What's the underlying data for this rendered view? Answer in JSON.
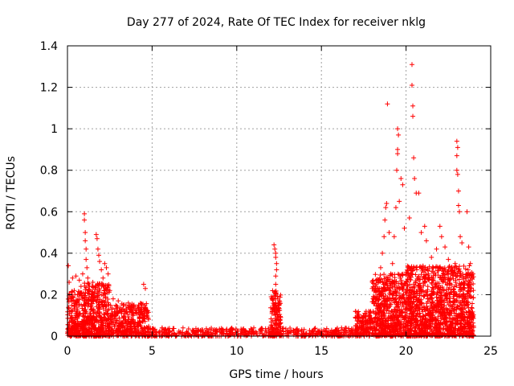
{
  "chart_data": {
    "type": "scatter",
    "title": "Day 277 of 2024, Rate Of TEC Index for receiver nklg",
    "xlabel": "GPS time / hours",
    "ylabel": "ROTI / TECUs",
    "xlim": [
      0,
      25
    ],
    "ylim": [
      0,
      1.4
    ],
    "x_ticks": [
      0,
      5,
      10,
      15,
      20,
      25
    ],
    "x_tick_labels": [
      "0",
      "5",
      "10",
      "15",
      "20",
      "25"
    ],
    "y_ticks": [
      0,
      0.2,
      0.4,
      0.6,
      0.8,
      1,
      1.2,
      1.4
    ],
    "y_tick_labels": [
      "0",
      "0.2",
      "0.4",
      "0.6",
      "0.8",
      "1",
      "1.2",
      "1.4"
    ],
    "grid": true,
    "marker": "+",
    "color": "#ff0000",
    "series": [
      {
        "name": "ROTI",
        "points": [
          [
            0.05,
            0.34
          ],
          [
            0.1,
            0.26
          ],
          [
            0.2,
            0.18
          ],
          [
            0.3,
            0.28
          ],
          [
            0.4,
            0.22
          ],
          [
            0.5,
            0.29
          ],
          [
            0.6,
            0.2
          ],
          [
            0.7,
            0.27
          ],
          [
            0.8,
            0.24
          ],
          [
            0.9,
            0.3
          ],
          [
            1.0,
            0.59
          ],
          [
            1.0,
            0.56
          ],
          [
            1.05,
            0.5
          ],
          [
            1.05,
            0.46
          ],
          [
            1.1,
            0.42
          ],
          [
            1.1,
            0.37
          ],
          [
            1.15,
            0.33
          ],
          [
            1.2,
            0.28
          ],
          [
            1.3,
            0.24
          ],
          [
            1.5,
            0.26
          ],
          [
            1.7,
            0.49
          ],
          [
            1.75,
            0.47
          ],
          [
            1.8,
            0.42
          ],
          [
            1.85,
            0.39
          ],
          [
            1.9,
            0.36
          ],
          [
            2.0,
            0.32
          ],
          [
            2.1,
            0.28
          ],
          [
            2.2,
            0.35
          ],
          [
            2.3,
            0.33
          ],
          [
            2.4,
            0.3
          ],
          [
            2.5,
            0.22
          ],
          [
            2.7,
            0.18
          ],
          [
            3.0,
            0.17
          ],
          [
            3.3,
            0.15
          ],
          [
            3.6,
            0.16
          ],
          [
            3.9,
            0.14
          ],
          [
            4.2,
            0.15
          ],
          [
            4.5,
            0.25
          ],
          [
            4.6,
            0.23
          ],
          [
            4.7,
            0.12
          ],
          [
            12.2,
            0.44
          ],
          [
            12.25,
            0.42
          ],
          [
            12.3,
            0.4
          ],
          [
            12.3,
            0.38
          ],
          [
            12.35,
            0.35
          ],
          [
            12.35,
            0.32
          ],
          [
            12.3,
            0.29
          ],
          [
            12.3,
            0.25
          ],
          [
            12.25,
            0.21
          ],
          [
            12.3,
            0.18
          ],
          [
            17.5,
            0.1
          ],
          [
            17.8,
            0.12
          ],
          [
            18.0,
            0.23
          ],
          [
            18.2,
            0.17
          ],
          [
            18.4,
            0.27
          ],
          [
            18.5,
            0.33
          ],
          [
            18.6,
            0.4
          ],
          [
            18.7,
            0.48
          ],
          [
            18.75,
            0.56
          ],
          [
            18.8,
            0.62
          ],
          [
            18.85,
            0.64
          ],
          [
            18.9,
            1.12
          ],
          [
            19.0,
            0.5
          ],
          [
            19.2,
            0.35
          ],
          [
            19.3,
            0.48
          ],
          [
            19.4,
            0.62
          ],
          [
            19.45,
            0.8
          ],
          [
            19.5,
            0.88
          ],
          [
            19.5,
            0.9
          ],
          [
            19.55,
            0.97
          ],
          [
            19.5,
            1.0
          ],
          [
            19.6,
            0.65
          ],
          [
            19.7,
            0.76
          ],
          [
            19.8,
            0.73
          ],
          [
            19.9,
            0.52
          ],
          [
            20.0,
            0.3
          ],
          [
            20.2,
            0.57
          ],
          [
            20.35,
            1.31
          ],
          [
            20.35,
            1.21
          ],
          [
            20.4,
            1.11
          ],
          [
            20.4,
            1.06
          ],
          [
            20.45,
            0.86
          ],
          [
            20.5,
            0.76
          ],
          [
            20.6,
            0.69
          ],
          [
            20.75,
            0.69
          ],
          [
            20.9,
            0.5
          ],
          [
            21.1,
            0.53
          ],
          [
            21.2,
            0.46
          ],
          [
            21.5,
            0.38
          ],
          [
            21.8,
            0.42
          ],
          [
            22.0,
            0.53
          ],
          [
            22.1,
            0.48
          ],
          [
            22.3,
            0.43
          ],
          [
            22.5,
            0.37
          ],
          [
            22.9,
            0.35
          ],
          [
            23.0,
            0.94
          ],
          [
            23.05,
            0.91
          ],
          [
            23.0,
            0.87
          ],
          [
            23.0,
            0.8
          ],
          [
            23.05,
            0.78
          ],
          [
            23.1,
            0.7
          ],
          [
            23.1,
            0.63
          ],
          [
            23.15,
            0.6
          ],
          [
            23.2,
            0.48
          ],
          [
            23.3,
            0.45
          ],
          [
            23.6,
            0.6
          ],
          [
            23.7,
            0.43
          ],
          [
            23.8,
            0.35
          ],
          [
            23.9,
            0.28
          ],
          [
            23.95,
            0.3
          ]
        ],
        "background_bands": [
          [
            0,
            1,
            0.0,
            0.22
          ],
          [
            1,
            2.5,
            0.0,
            0.26
          ],
          [
            2.5,
            4.8,
            0.0,
            0.16
          ],
          [
            4.8,
            12.0,
            0.0,
            0.04
          ],
          [
            12.0,
            12.6,
            0.0,
            0.22
          ],
          [
            12.6,
            17.0,
            0.0,
            0.04
          ],
          [
            17.0,
            18.0,
            0.0,
            0.12
          ],
          [
            18.0,
            20.0,
            0.0,
            0.3
          ],
          [
            20.0,
            24.0,
            0.0,
            0.34
          ]
        ]
      }
    ]
  }
}
